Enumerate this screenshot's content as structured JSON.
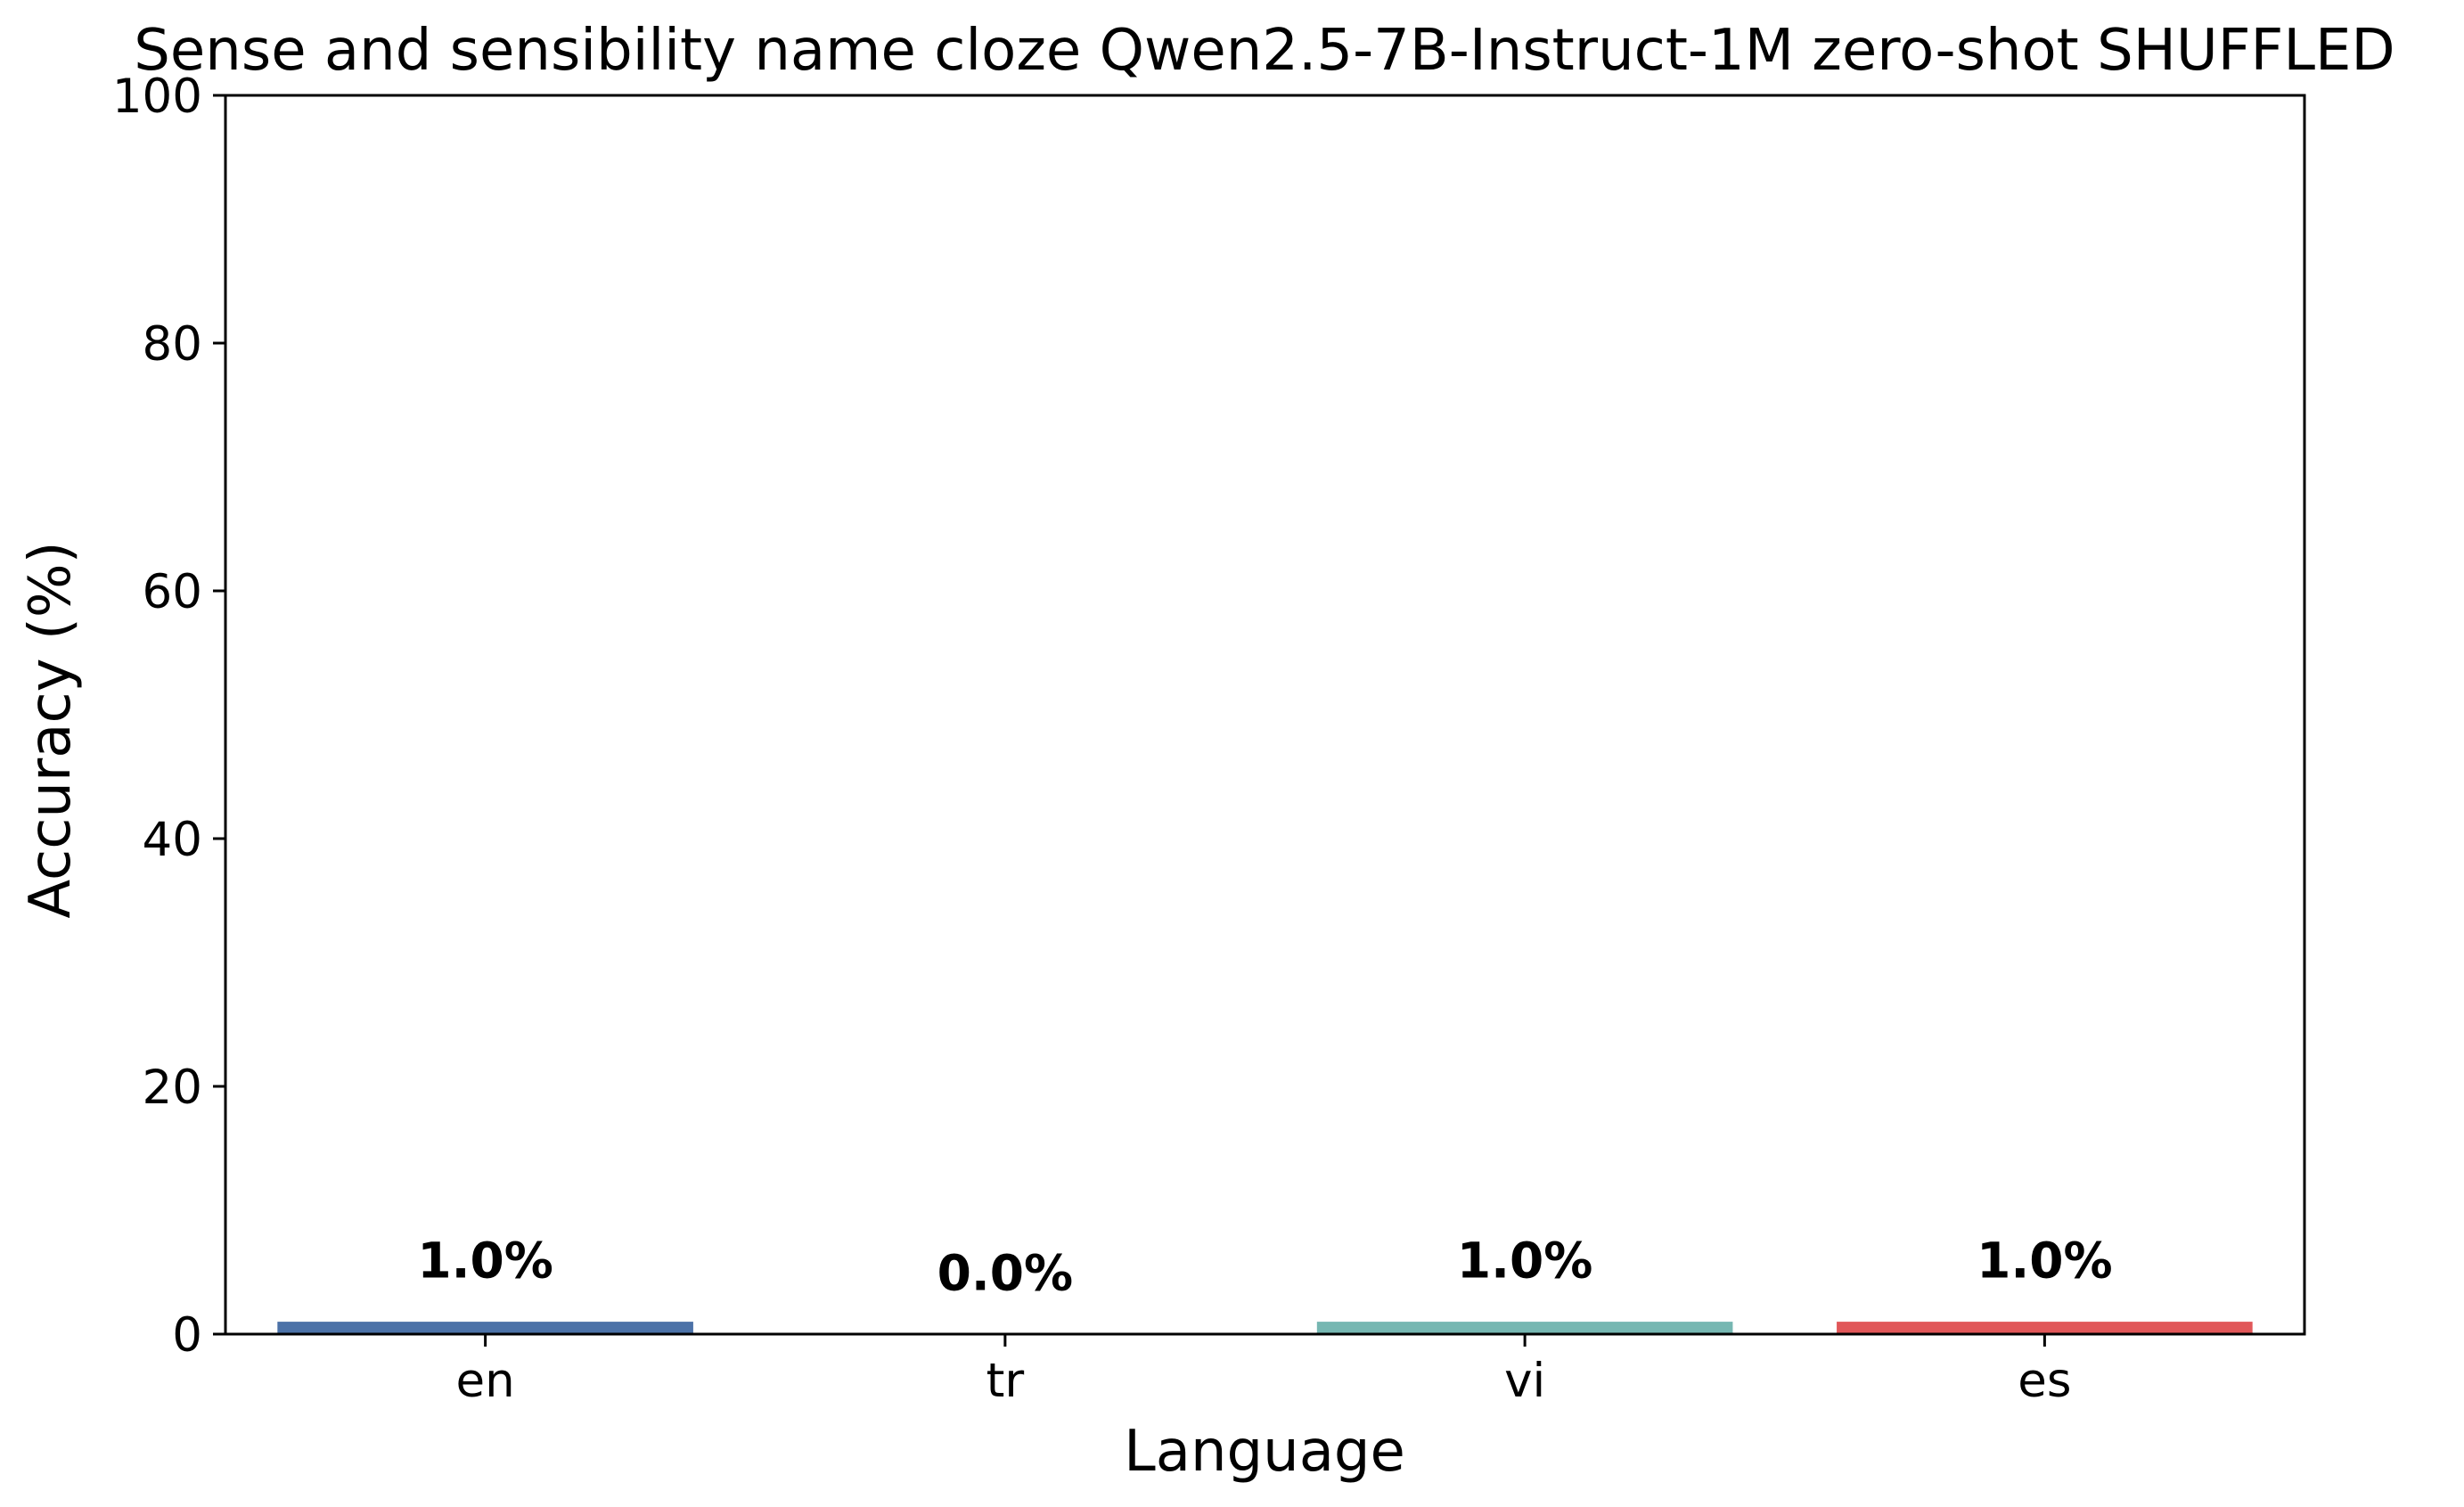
{
  "chart_data": {
    "type": "bar",
    "title": "Sense and sensibility name cloze Qwen2.5-7B-Instruct-1M zero-shot SHUFFLED",
    "xlabel": "Language",
    "ylabel": "Accuracy (%)",
    "categories": [
      "en",
      "tr",
      "vi",
      "es"
    ],
    "values": [
      1.0,
      0.0,
      1.0,
      1.0
    ],
    "data_labels": [
      "1.0%",
      "0.0%",
      "1.0%",
      "1.0%"
    ],
    "colors": [
      "#4c72a8",
      "#f28e2b",
      "#76b7b2",
      "#e15759"
    ],
    "ylim": [
      0,
      100
    ],
    "yticks": [
      0,
      20,
      40,
      60,
      80,
      100
    ],
    "ytick_labels": [
      "0",
      "20",
      "40",
      "60",
      "80",
      "100"
    ],
    "grid": false,
    "legend": "none"
  }
}
